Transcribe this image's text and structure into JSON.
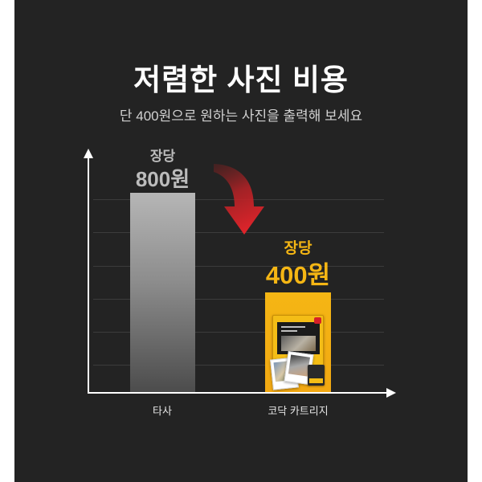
{
  "colors": {
    "background": "#232323",
    "accent": "#f5b614",
    "muted": "#bcbcbc",
    "arrow": "#e3242b"
  },
  "chart_data": {
    "type": "bar",
    "title": "저렴한 사진 비용",
    "subtitle": "단 400원으로 원하는 사진을 출력해 보세요",
    "categories": [
      "타사",
      "코닥 카트리지"
    ],
    "values": [
      800,
      400
    ],
    "data_labels": [
      {
        "prefix": "장당",
        "text": "800원"
      },
      {
        "prefix": "장당",
        "text": "400원"
      }
    ],
    "grid": true,
    "annotation_icon": "curved-down-arrow-icon",
    "product_icon": "kodak-cartridge-package-icon"
  }
}
